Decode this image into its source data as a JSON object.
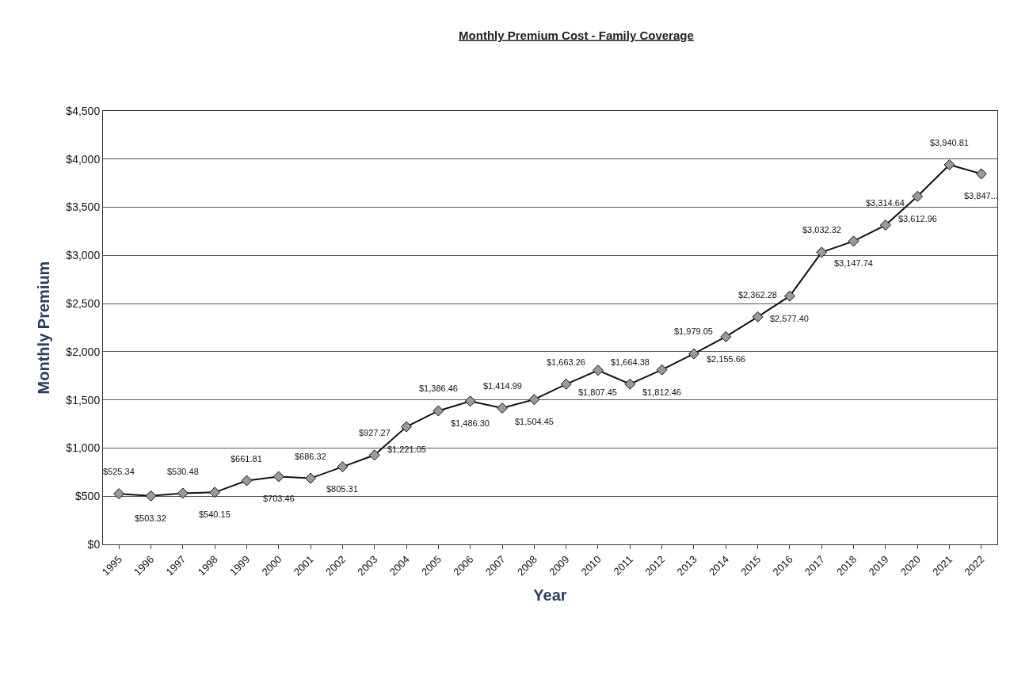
{
  "chart_data": {
    "type": "line",
    "title": "Monthly Premium Cost - Family Coverage",
    "xlabel": "Year",
    "ylabel": "Monthly Premium",
    "categories": [
      "1995",
      "1996",
      "1997",
      "1998",
      "1999",
      "2000",
      "2001",
      "2002",
      "2003",
      "2004",
      "2005",
      "2006",
      "2007",
      "2008",
      "2009",
      "2010",
      "2011",
      "2012",
      "2013",
      "2014",
      "2015",
      "2016",
      "2017",
      "2018",
      "2019",
      "2020",
      "2021",
      "2022"
    ],
    "series": [
      {
        "color": "#111111",
        "values": [
          525.34,
          503.32,
          530.48,
          540.15,
          661.81,
          703.46,
          686.32,
          805.31,
          927.27,
          1221.05,
          1386.46,
          1486.3,
          1414.99,
          1504.45,
          1663.26,
          1807.45,
          1664.38,
          1812.46,
          1979.05,
          2155.66,
          2362.28,
          2577.4,
          3032.32,
          3147.74,
          3314.64,
          3612.96,
          3940.81,
          3847
        ],
        "value_labels": [
          "$525.34",
          "$503.32",
          "$530.48",
          "$540.15",
          "$661.81",
          "$703.46",
          "$686.32",
          "$805.31",
          "$927.27",
          "$1,221.05",
          "$1,386.46",
          "$1,486.30",
          "$1,414.99",
          "$1,504.45",
          "$1,663.26",
          "$1,807.45",
          "$1,664.38",
          "$1,812.46",
          "$1,979.05",
          "$2,155.66",
          "$2,362.28",
          "$2,577.40",
          "$3,032.32",
          "$3,147.74",
          "$3,314.64",
          "$3,612.96",
          "$3,940.81",
          "$3,847..."
        ]
      }
    ],
    "ylim": [
      0,
      4500
    ],
    "yticks": [
      {
        "value": 0,
        "label": "$0"
      },
      {
        "value": 500,
        "label": "$500"
      },
      {
        "value": 1000,
        "label": "$1,000"
      },
      {
        "value": 1500,
        "label": "$1,500"
      },
      {
        "value": 2000,
        "label": "$2,000"
      },
      {
        "value": 2500,
        "label": "$2,500"
      },
      {
        "value": 3000,
        "label": "$3,000"
      },
      {
        "value": 3500,
        "label": "$3,500"
      },
      {
        "value": 4000,
        "label": "$4,000"
      },
      {
        "value": 4500,
        "label": "$4,500"
      }
    ],
    "grid": "y",
    "marker": "diamond",
    "line_style": "solid",
    "legend": false
  }
}
